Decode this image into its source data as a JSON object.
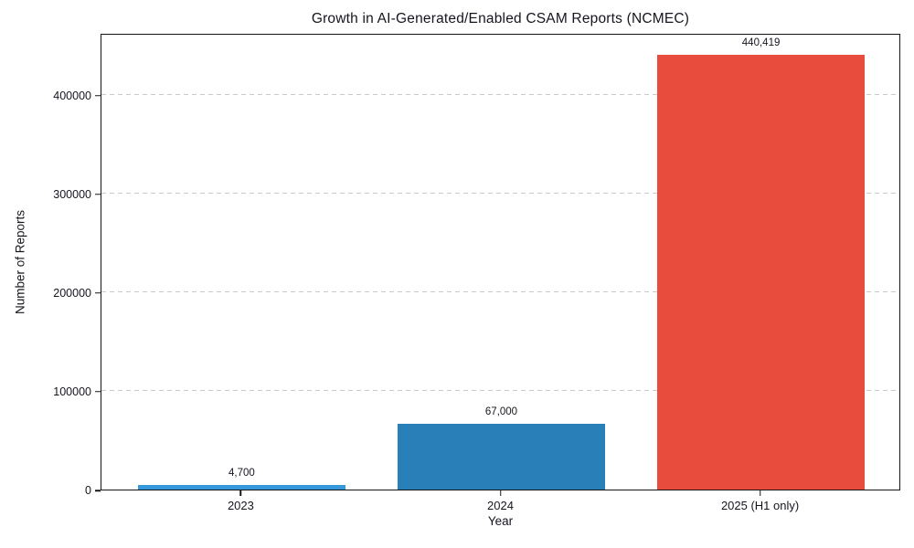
{
  "chart_data": {
    "type": "bar",
    "title": "Growth in AI-Generated/Enabled CSAM Reports (NCMEC)",
    "xlabel": "Year",
    "ylabel": "Number of Reports",
    "categories": [
      "2023",
      "2024",
      "2025 (H1 only)"
    ],
    "values": [
      4700,
      67000,
      440419
    ],
    "value_labels": [
      "4,700",
      "67,000",
      "440,419"
    ],
    "bar_colors": [
      "#3498db",
      "#2980b9",
      "#e74c3c"
    ],
    "yticks": [
      0,
      100000,
      200000,
      300000,
      400000
    ],
    "ytick_labels": [
      "0",
      "100000",
      "200000",
      "300000",
      "400000"
    ],
    "ylim": [
      0,
      462440
    ],
    "grid": "horizontal-dashed",
    "gridline_color": "#c9c9c9",
    "legend_position": "none",
    "spine_color": "#161616",
    "background_color": "#ffffff"
  }
}
